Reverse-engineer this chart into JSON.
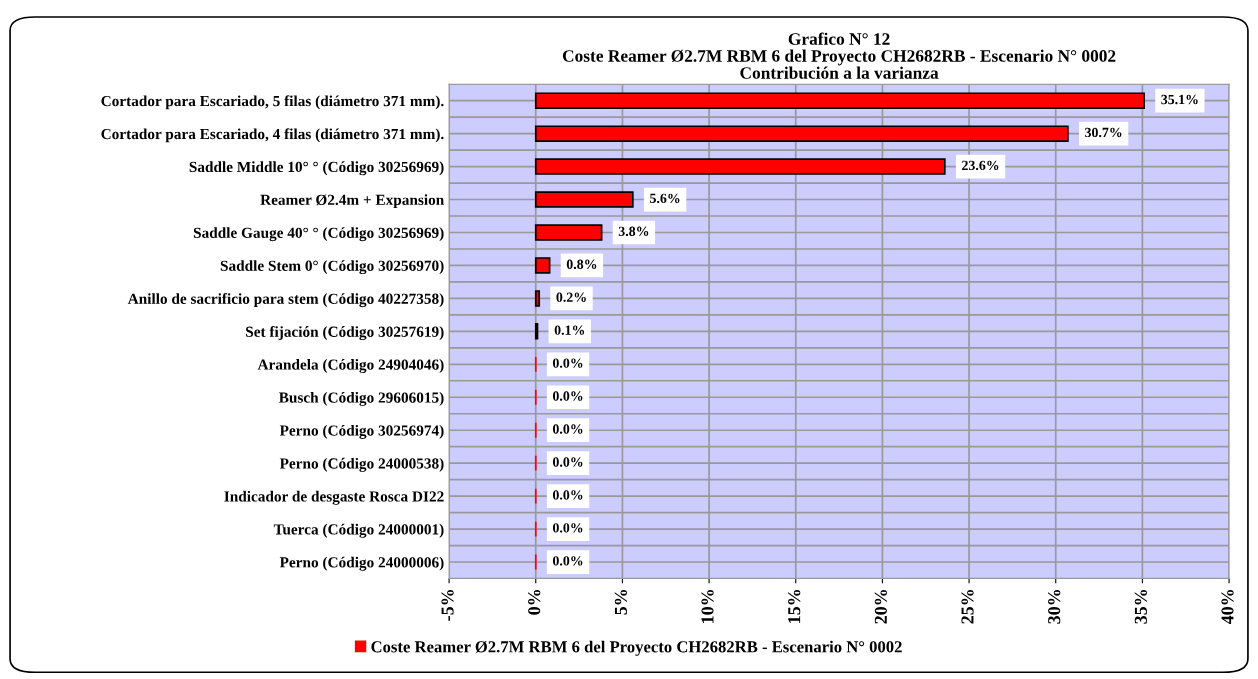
{
  "chart_data": {
    "type": "bar",
    "orientation": "horizontal",
    "title": "Grafico N° 12\nCoste Reamer Ø2.7M RBM 6 del Proyecto CH2682RB - Escenario N° 0002\nContribución a la varianza",
    "categories": [
      "Cortador para Escariado, 5 filas (diámetro 371 mm).",
      "Cortador para Escariado, 4 filas (diámetro 371 mm).",
      "Saddle Middle 10° ° (Código 30256969)",
      "Reamer Ø2.4m + Expansion",
      "Saddle Gauge 40° ° (Código 30256969)",
      "Saddle Stem 0° (Código 30256970)",
      "Anillo de sacrificio para stem (Código 40227358)",
      "Set fijación (Código 30257619)",
      "Arandela (Código 24904046)",
      "Busch (Código 29606015)",
      "Perno (Código 30256974)",
      "Perno (Código 24000538)",
      "Indicador de desgaste Rosca DI22",
      "Tuerca (Código 24000001)",
      "Perno (Código 24000006)"
    ],
    "series": [
      {
        "name": "Coste Reamer Ø2.7M RBM 6 del Proyecto CH2682RB - Escenario N° 0002",
        "color": "#ff0000",
        "values": [
          35.1,
          30.7,
          23.6,
          5.6,
          3.8,
          0.8,
          0.2,
          0.1,
          0.0,
          0.0,
          0.0,
          0.0,
          0.0,
          0.0,
          0.0
        ],
        "value_labels": [
          "35.1%",
          "30.7%",
          "23.6%",
          "5.6%",
          "3.8%",
          "0.8%",
          "0.2%",
          "0.1%",
          "0.0%",
          "0.0%",
          "0.0%",
          "0.0%",
          "0.0%",
          "0.0%",
          "0.0%"
        ]
      }
    ],
    "xlim": [
      -5,
      40
    ],
    "xticks": [
      {
        "value": -5,
        "label": "-5%"
      },
      {
        "value": 0,
        "label": "0%"
      },
      {
        "value": 5,
        "label": "5%"
      },
      {
        "value": 10,
        "label": "10%"
      },
      {
        "value": 15,
        "label": "15%"
      },
      {
        "value": 20,
        "label": "20%"
      },
      {
        "value": 25,
        "label": "25%"
      },
      {
        "value": 30,
        "label": "30%"
      },
      {
        "value": 35,
        "label": "35%"
      },
      {
        "value": 40,
        "label": "40%"
      }
    ],
    "grid": true,
    "legend": "bottom"
  }
}
